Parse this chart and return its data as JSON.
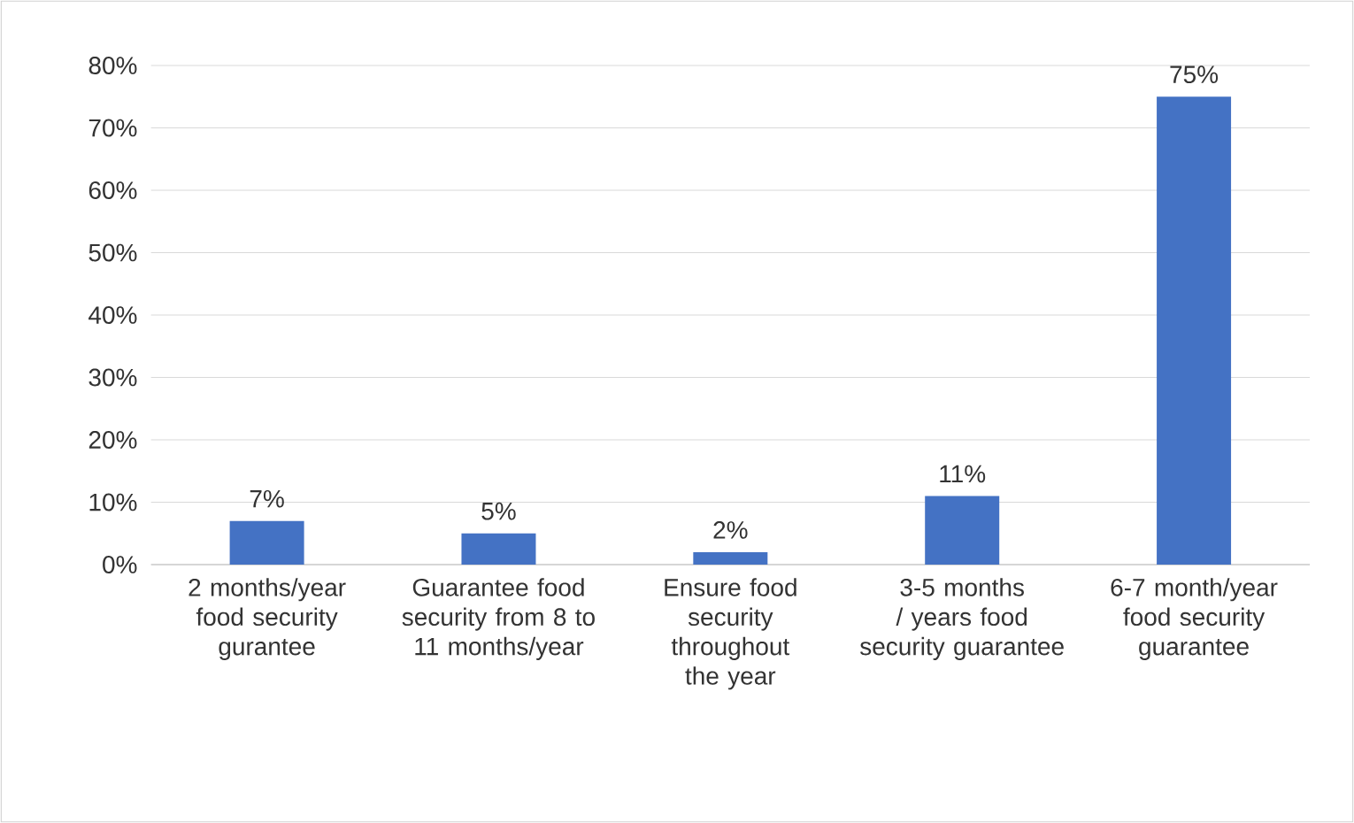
{
  "chart_data": {
    "type": "bar",
    "categories": [
      "2 months/year food security gurantee",
      "Guarantee food security from 8 to 11 months/year",
      "Ensure food security throughout the year",
      "3-5 months / years food security guarantee",
      "6-7 month/year food security guarantee"
    ],
    "values": [
      7,
      5,
      2,
      11,
      75
    ],
    "value_labels": [
      "7%",
      "5%",
      "2%",
      "11%",
      "75%"
    ],
    "color": "#4472c4",
    "ylim": [
      0,
      80
    ],
    "yticks": [
      {
        "value": 0,
        "label": "0%"
      },
      {
        "value": 10,
        "label": "10%"
      },
      {
        "value": 20,
        "label": "20%"
      },
      {
        "value": 30,
        "label": "30%"
      },
      {
        "value": 40,
        "label": "40%"
      },
      {
        "value": 50,
        "label": "50%"
      },
      {
        "value": 60,
        "label": "60%"
      },
      {
        "value": 70,
        "label": "70%"
      },
      {
        "value": 80,
        "label": "80%"
      }
    ],
    "grid": "y"
  }
}
